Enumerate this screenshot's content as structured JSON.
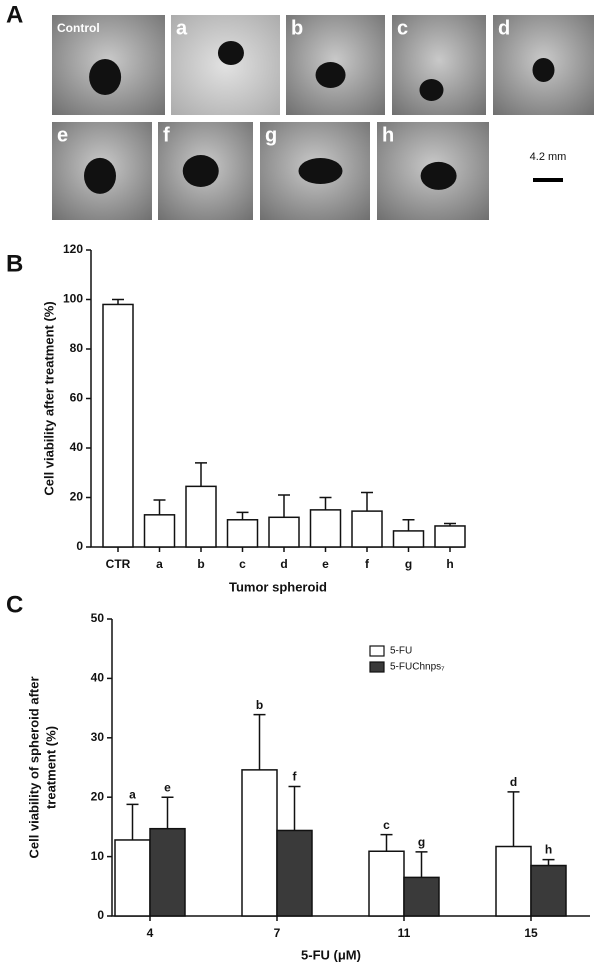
{
  "panel_a": {
    "label": "A",
    "images": [
      "Control",
      "a",
      "b",
      "c",
      "d",
      "e",
      "f",
      "g",
      "h"
    ],
    "scale_bar": "4.2 mm"
  },
  "chart_data": [
    {
      "type": "bar",
      "panel_label": "B",
      "categories": [
        "CTR",
        "a",
        "b",
        "c",
        "d",
        "e",
        "f",
        "g",
        "h"
      ],
      "values": [
        98,
        13,
        24.5,
        11,
        12,
        15,
        14.5,
        6.5,
        8.5
      ],
      "errors": [
        2,
        6,
        9.5,
        3,
        9,
        5,
        7.5,
        4.5,
        1
      ],
      "color": "#ffffff",
      "ylim": [
        0,
        120
      ],
      "yticks": [
        0,
        20,
        40,
        60,
        80,
        100,
        120
      ],
      "ylabel": [
        "Cell viability after treatment (%)"
      ],
      "xlabel": "Tumor spheroid"
    },
    {
      "type": "bar",
      "panel_label": "C",
      "categories": [
        "4",
        "7",
        "11",
        "15"
      ],
      "series": [
        {
          "name": "5-FU",
          "color": "#ffffff",
          "values": [
            12.8,
            24.6,
            10.9,
            11.7
          ],
          "errors": [
            6,
            9.3,
            2.8,
            9.2
          ],
          "bar_labels": [
            "a",
            "b",
            "c",
            "d"
          ]
        },
        {
          "name": "5-FUChnps₇",
          "color": "#3a3a3a",
          "values": [
            14.7,
            14.4,
            6.5,
            8.5
          ],
          "errors": [
            5.3,
            7.4,
            4.3,
            1
          ],
          "bar_labels": [
            "e",
            "f",
            "g",
            "h"
          ]
        }
      ],
      "ylim": [
        0,
        50
      ],
      "yticks": [
        0,
        10,
        20,
        30,
        40,
        50
      ],
      "ylabel": [
        "Cell viability of spheroid after",
        "treatment (%)"
      ],
      "xlabel": "5-FU (μM)",
      "legend": "upper right"
    }
  ]
}
